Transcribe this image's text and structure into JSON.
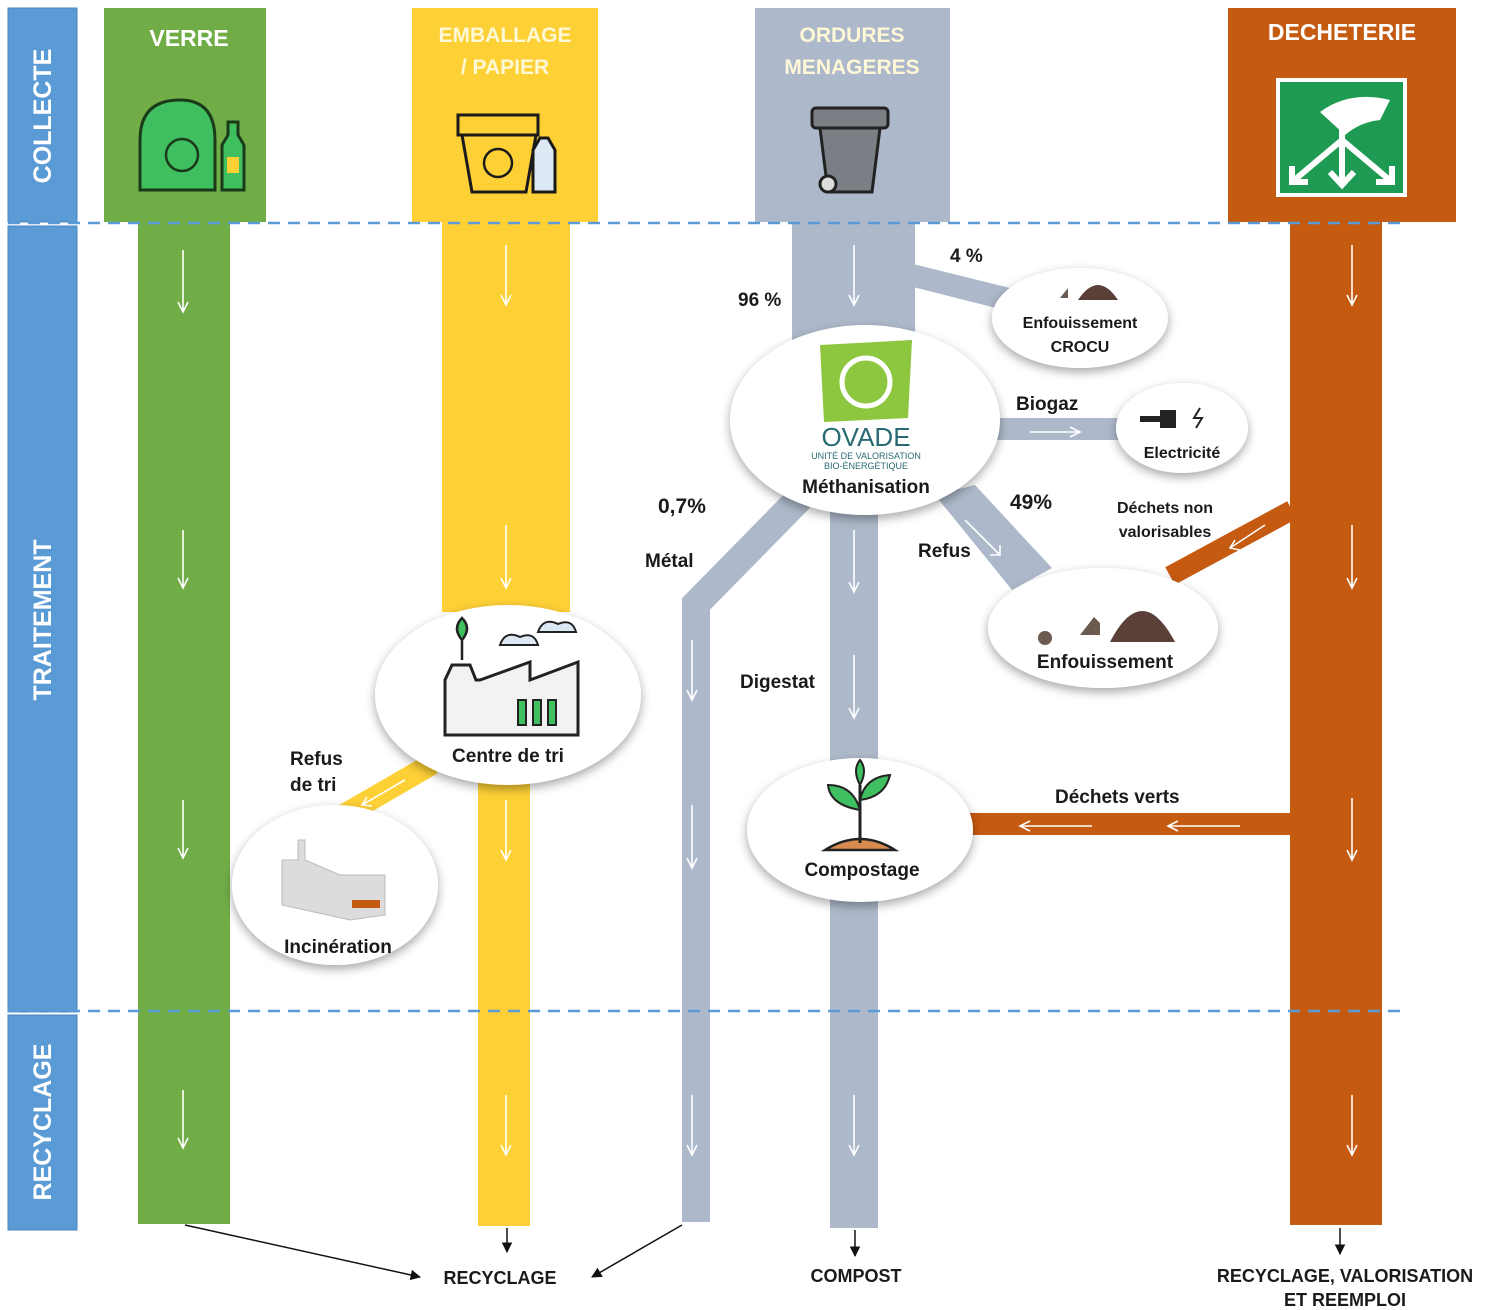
{
  "phases": [
    "COLLECTE",
    "TRAITEMENT",
    "RECYCLAGE"
  ],
  "streams": [
    {
      "title": [
        "VERRE"
      ]
    },
    {
      "title": [
        "EMBALLAGE",
        "/ PAPIER"
      ]
    },
    {
      "title": [
        "ORDURES",
        "MENAGERES"
      ]
    },
    {
      "title": [
        "DECHETERIE"
      ]
    }
  ],
  "nodes": {
    "enfouissement_crocu": [
      "Enfouissement",
      "CROCU"
    ],
    "methanisation": {
      "logo": "OVADE",
      "logo_sub": [
        "UNITÉ DE VALORISATION",
        "BIO-ÉNERGÉTIQUE"
      ],
      "label": "Méthanisation"
    },
    "electricite": "Electricité",
    "enfouissement": "Enfouissement",
    "centre_de_tri": "Centre de tri",
    "incineration": "Incinération",
    "compostage": "Compostage"
  },
  "flows": {
    "crocu_share": "4 %",
    "methanisation_share": "96 %",
    "biogaz": "Biogaz",
    "metal_share": "0,7%",
    "metal": "Métal",
    "refus_share": "49%",
    "refus": "Refus",
    "dechets_non_valorisables": [
      "Déchets non",
      "valorisables"
    ],
    "digestat": "Digestat",
    "refus_de_tri": [
      "Refus",
      "de tri"
    ],
    "dechets_verts": "Déchets verts"
  },
  "outputs": [
    [
      "RECYCLAGE"
    ],
    [
      "COMPOST"
    ],
    [
      "RECYCLAGE, VALORISATION",
      "ET REEMPLOI"
    ]
  ]
}
